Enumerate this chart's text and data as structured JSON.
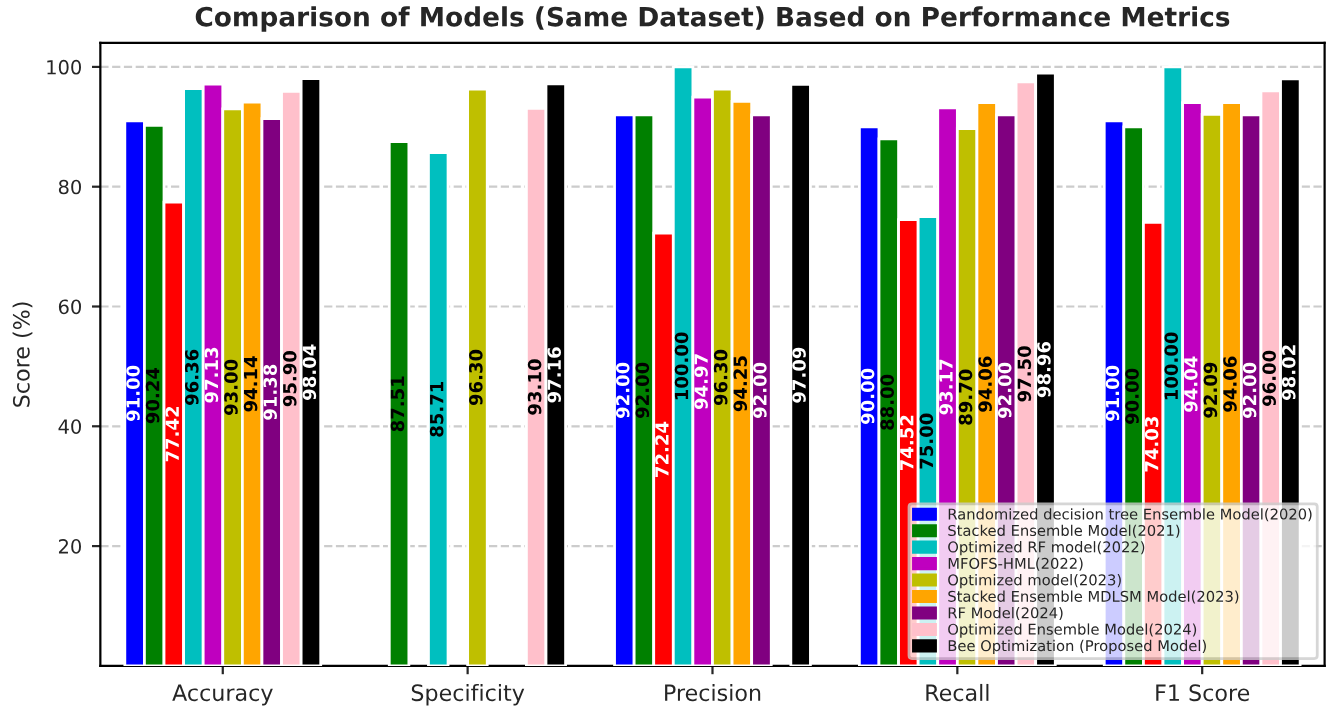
{
  "chart_data": {
    "type": "bar",
    "title": "Comparison of Models (Same Dataset) Based on Performance Metrics",
    "ylabel": "Score (%)",
    "categories": [
      "Accuracy",
      "Specificity",
      "Precision",
      "Recall",
      "F1 Score"
    ],
    "ylim": [
      0,
      104
    ],
    "yticks": [
      20,
      40,
      60,
      80,
      100
    ],
    "grid": "y",
    "legend": "bottom right",
    "series": [
      {
        "name": "Randomized decision tree Ensemble Model(2020)",
        "color": "#0000ff",
        "values": [
          91.0,
          null,
          92.0,
          90.0,
          91.0
        ],
        "value_labels": [
          "91.00",
          null,
          "92.00",
          "90.00",
          "91.00"
        ]
      },
      {
        "name": "Stacked Ensemble Model(2021)",
        "color": "#008000",
        "values": [
          90.24,
          87.51,
          92.0,
          88.0,
          90.0
        ],
        "value_labels": [
          "90.24",
          "87.51",
          "92.00",
          "88.00",
          "90.00"
        ]
      },
      {
        "color": "#ff0000",
        "values": [
          77.42,
          null,
          72.24,
          74.52,
          74.03
        ],
        "value_labels": [
          "77.42",
          null,
          "72.24",
          "74.52",
          "74.03"
        ]
      },
      {
        "name": "Optimized RF model(2022)",
        "color": "#00bfbf",
        "values": [
          96.36,
          85.71,
          100.0,
          75.0,
          100.0
        ],
        "value_labels": [
          "96.36",
          "85.71",
          "100.00",
          "75.00",
          "100.00"
        ]
      },
      {
        "name": "MFOFS-HML(2022)",
        "color": "#bf00bf",
        "values": [
          97.13,
          null,
          94.97,
          93.17,
          94.04
        ],
        "value_labels": [
          "97.13",
          null,
          "94.97",
          "93.17",
          "94.04"
        ]
      },
      {
        "name": "Optimized model(2023)",
        "color": "#bfbf00",
        "values": [
          93.0,
          96.3,
          96.3,
          89.7,
          92.09
        ],
        "value_labels": [
          "93.00",
          "96.30",
          "96.30",
          "89.70",
          "92.09"
        ]
      },
      {
        "name": "Stacked Ensemble MDLSM Model(2023)",
        "color": "#ffa500",
        "values": [
          94.14,
          null,
          94.25,
          94.06,
          94.06
        ],
        "value_labels": [
          "94.14",
          null,
          "94.25",
          "94.06",
          "94.06"
        ]
      },
      {
        "name": "RF Model(2024)",
        "color": "#800080",
        "values": [
          91.38,
          null,
          92.0,
          92.0,
          92.0
        ],
        "value_labels": [
          "91.38",
          null,
          "92.00",
          "92.00",
          "92.00"
        ]
      },
      {
        "name": "Optimized Ensemble Model(2024)",
        "color": "#ffc0cb",
        "values": [
          95.9,
          93.1,
          null,
          97.5,
          96.0
        ],
        "value_labels": [
          "95.90",
          "93.10",
          null,
          "97.50",
          "96.00"
        ]
      },
      {
        "name": "Bee Optimization (Proposed Model)",
        "color": "#000000",
        "values": [
          98.04,
          97.16,
          97.09,
          98.96,
          98.02
        ],
        "value_labels": [
          "98.04",
          "97.16",
          "97.09",
          "98.96",
          "98.02"
        ]
      }
    ]
  }
}
